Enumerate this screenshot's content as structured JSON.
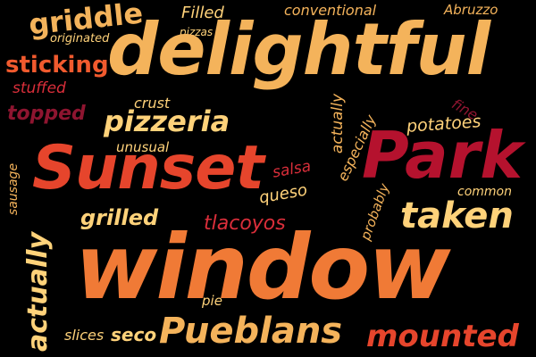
{
  "words": {
    "griddle": "griddle",
    "filled": "Filled",
    "conventional": "conventional",
    "abruzzo": "Abruzzo",
    "originated": "originated",
    "pizzas": "pizzas",
    "delightful": "delightful",
    "sticking": "sticking",
    "stuffed": "stuffed",
    "topped": "topped",
    "crust": "crust",
    "pizzeria": "pizzeria",
    "actually_small": "actually",
    "fine": "fine",
    "potatoes": "potatoes",
    "unusual": "unusual",
    "sunset": "Sunset",
    "park": "Park",
    "sausage": "sausage",
    "salsa": "salsa",
    "especially": "especially",
    "queso": "queso",
    "probably": "probably",
    "common": "common",
    "grilled": "grilled",
    "tlacoyos": "tlacoyos",
    "taken": "taken",
    "actually_large": "actually",
    "window": "window",
    "pie": "pie",
    "slices": "slices",
    "seco": "seco",
    "pueblans": "Pueblans",
    "mounted": "mounted"
  }
}
